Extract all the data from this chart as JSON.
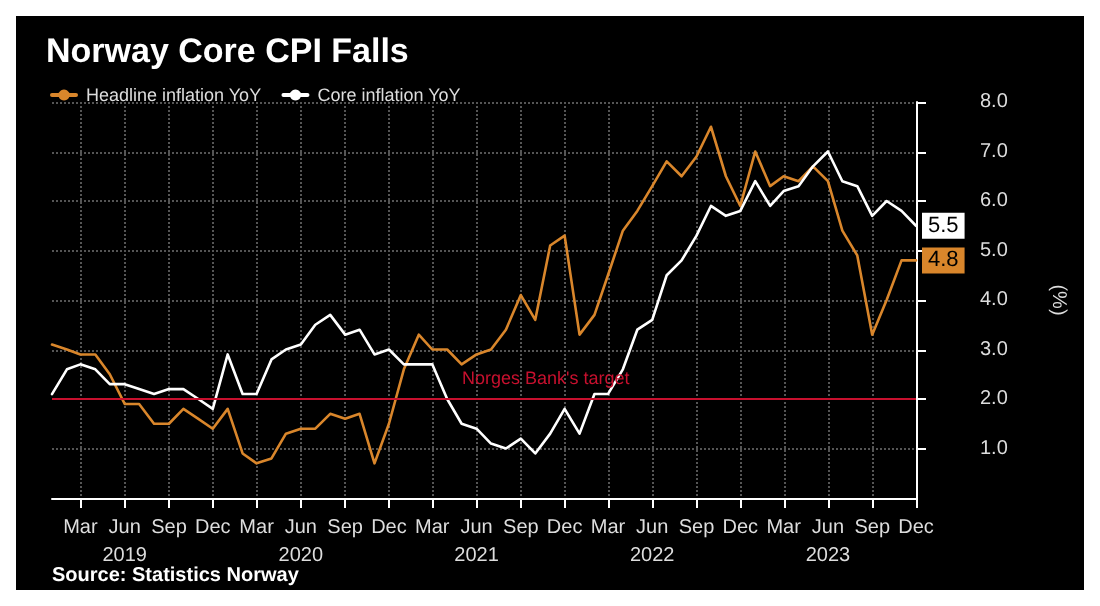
{
  "chart_data": {
    "type": "line",
    "title": "Norway Core CPI Falls",
    "x": [
      "2019-01",
      "2019-02",
      "2019-03",
      "2019-04",
      "2019-05",
      "2019-06",
      "2019-07",
      "2019-08",
      "2019-09",
      "2019-10",
      "2019-11",
      "2019-12",
      "2020-01",
      "2020-02",
      "2020-03",
      "2020-04",
      "2020-05",
      "2020-06",
      "2020-07",
      "2020-08",
      "2020-09",
      "2020-10",
      "2020-11",
      "2020-12",
      "2021-01",
      "2021-02",
      "2021-03",
      "2021-04",
      "2021-05",
      "2021-06",
      "2021-07",
      "2021-08",
      "2021-09",
      "2021-10",
      "2021-11",
      "2021-12",
      "2022-01",
      "2022-02",
      "2022-03",
      "2022-04",
      "2022-05",
      "2022-06",
      "2022-07",
      "2022-08",
      "2022-09",
      "2022-10",
      "2022-11",
      "2022-12",
      "2023-01",
      "2023-02",
      "2023-03",
      "2023-04",
      "2023-05",
      "2023-06",
      "2023-07",
      "2023-08",
      "2023-09",
      "2023-10",
      "2023-11",
      "2023-12"
    ],
    "series": [
      {
        "name": "Headline inflation YoY",
        "color": "#d9862b",
        "values": [
          3.1,
          3.0,
          2.9,
          2.9,
          2.5,
          1.9,
          1.9,
          1.5,
          1.5,
          1.8,
          1.6,
          1.4,
          1.8,
          0.9,
          0.7,
          0.8,
          1.3,
          1.4,
          1.4,
          1.7,
          1.6,
          1.7,
          0.7,
          1.5,
          2.6,
          3.3,
          3.0,
          3.0,
          2.7,
          2.9,
          3.0,
          3.4,
          4.1,
          3.6,
          5.1,
          5.3,
          3.3,
          3.7,
          4.5,
          5.4,
          5.8,
          6.3,
          6.8,
          6.5,
          6.9,
          7.5,
          6.5,
          5.9,
          7.0,
          6.3,
          6.5,
          6.4,
          6.7,
          6.4,
          5.4,
          4.9,
          3.3,
          4.0,
          4.8,
          4.8
        ],
        "value_labels": [
          null,
          null,
          null,
          null,
          null,
          null,
          null,
          null,
          null,
          null,
          null,
          null,
          null,
          null,
          null,
          null,
          null,
          null,
          null,
          null,
          null,
          null,
          null,
          null,
          null,
          null,
          null,
          null,
          null,
          null,
          null,
          null,
          null,
          null,
          null,
          null,
          null,
          null,
          null,
          null,
          null,
          null,
          null,
          null,
          null,
          null,
          null,
          null,
          null,
          null,
          null,
          null,
          null,
          null,
          null,
          null,
          null,
          null,
          null,
          "4.8"
        ]
      },
      {
        "name": "Core inflation YoY",
        "color": "#ffffff",
        "values": [
          2.1,
          2.6,
          2.7,
          2.6,
          2.3,
          2.3,
          2.2,
          2.1,
          2.2,
          2.2,
          2.0,
          1.8,
          2.9,
          2.1,
          2.1,
          2.8,
          3.0,
          3.1,
          3.5,
          3.7,
          3.3,
          3.4,
          2.9,
          3.0,
          2.7,
          2.7,
          2.7,
          2.0,
          1.5,
          1.4,
          1.1,
          1.0,
          1.2,
          0.9,
          1.3,
          1.8,
          1.3,
          2.1,
          2.1,
          2.6,
          3.4,
          3.6,
          4.5,
          4.8,
          5.3,
          5.9,
          5.7,
          5.8,
          6.4,
          5.9,
          6.2,
          6.3,
          6.7,
          7.0,
          6.4,
          6.3,
          5.7,
          6.0,
          5.8,
          5.5
        ],
        "value_labels": [
          null,
          null,
          null,
          null,
          null,
          null,
          null,
          null,
          null,
          null,
          null,
          null,
          null,
          null,
          null,
          null,
          null,
          null,
          null,
          null,
          null,
          null,
          null,
          null,
          null,
          null,
          null,
          null,
          null,
          null,
          null,
          null,
          null,
          null,
          null,
          null,
          null,
          null,
          null,
          null,
          null,
          null,
          null,
          null,
          null,
          null,
          null,
          null,
          null,
          null,
          null,
          null,
          null,
          null,
          null,
          null,
          null,
          null,
          null,
          "5.5"
        ]
      }
    ],
    "xlim": [
      "2019-01",
      "2023-12"
    ],
    "xticks": [
      {
        "value": "2019-03",
        "label": "Mar"
      },
      {
        "value": "2019-06",
        "label": "Jun\n2019"
      },
      {
        "value": "2019-09",
        "label": "Sep"
      },
      {
        "value": "2019-12",
        "label": "Dec"
      },
      {
        "value": "2020-03",
        "label": "Mar"
      },
      {
        "value": "2020-06",
        "label": "Jun\n2020"
      },
      {
        "value": "2020-09",
        "label": "Sep"
      },
      {
        "value": "2020-12",
        "label": "Dec"
      },
      {
        "value": "2021-03",
        "label": "Mar"
      },
      {
        "value": "2021-06",
        "label": "Jun\n2021"
      },
      {
        "value": "2021-09",
        "label": "Sep"
      },
      {
        "value": "2021-12",
        "label": "Dec"
      },
      {
        "value": "2022-03",
        "label": "Mar"
      },
      {
        "value": "2022-06",
        "label": "Jun\n2022"
      },
      {
        "value": "2022-09",
        "label": "Sep"
      },
      {
        "value": "2022-12",
        "label": "Dec"
      },
      {
        "value": "2023-03",
        "label": "Mar"
      },
      {
        "value": "2023-06",
        "label": "Jun\n2023"
      },
      {
        "value": "2023-09",
        "label": "Sep"
      },
      {
        "value": "2023-12",
        "label": "Dec"
      }
    ],
    "ylim": [
      0,
      8
    ],
    "yticks": [
      {
        "value": 1,
        "label": "1.0"
      },
      {
        "value": 2,
        "label": "2.0"
      },
      {
        "value": 3,
        "label": "3.0"
      },
      {
        "value": 4,
        "label": "4.0"
      },
      {
        "value": 5,
        "label": "5.0"
      },
      {
        "value": 6,
        "label": "6.0"
      },
      {
        "value": 7,
        "label": "7.0"
      },
      {
        "value": 8,
        "label": "8.0"
      }
    ],
    "ylabel": "(%)",
    "ref_lines": [
      {
        "axis": "y",
        "value": 2,
        "label": "Norges Bank's target",
        "color": "#c8102e"
      }
    ],
    "annotations": [
      "Source: Statistics Norway"
    ],
    "grid": true,
    "legend": "top left",
    "marker": "none",
    "line_style": "solid"
  }
}
